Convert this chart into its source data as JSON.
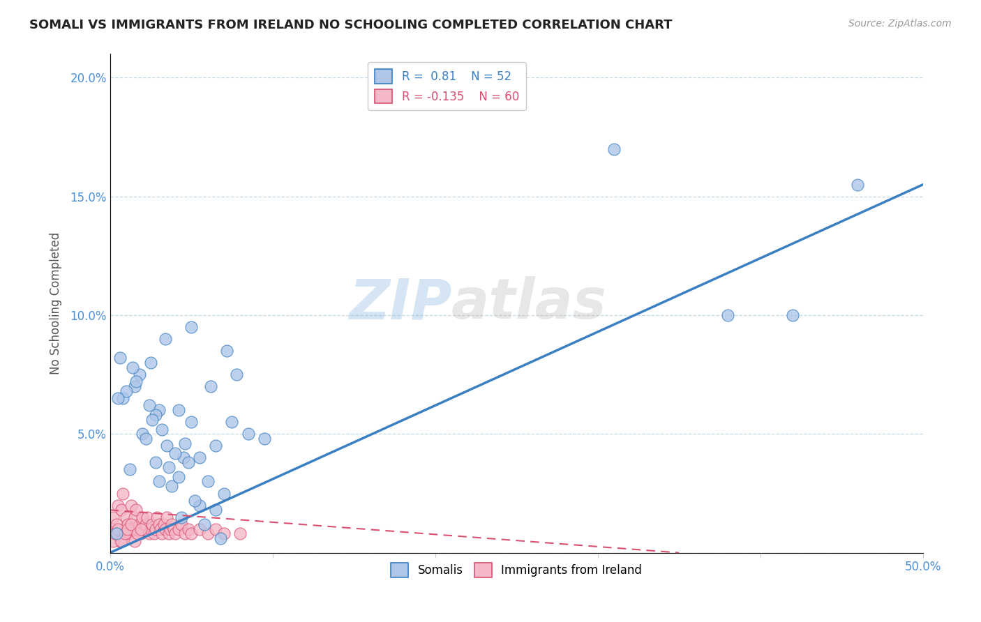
{
  "title": "SOMALI VS IMMIGRANTS FROM IRELAND NO SCHOOLING COMPLETED CORRELATION CHART",
  "source": "Source: ZipAtlas.com",
  "ylabel": "No Schooling Completed",
  "xlim": [
    0.0,
    0.5
  ],
  "ylim": [
    0.0,
    0.21
  ],
  "xticks": [
    0.0,
    0.1,
    0.2,
    0.3,
    0.4,
    0.5
  ],
  "yticks": [
    0.0,
    0.05,
    0.1,
    0.15,
    0.2
  ],
  "xticklabels": [
    "0.0%",
    "",
    "",
    "",
    "",
    "50.0%"
  ],
  "yticklabels": [
    "",
    "5.0%",
    "10.0%",
    "15.0%",
    "20.0%"
  ],
  "blue_R": 0.81,
  "blue_N": 52,
  "pink_R": -0.135,
  "pink_N": 60,
  "blue_color": "#aec6e8",
  "pink_color": "#f5b8c8",
  "blue_line_color": "#3a7fc1",
  "pink_line_color": "#d94f70",
  "watermark_zip": "ZIP",
  "watermark_atlas": "atlas",
  "legend_items": [
    "Somalis",
    "Immigrants from Ireland"
  ],
  "blue_line_x0": 0.0,
  "blue_line_y0": 0.0,
  "blue_line_x1": 0.5,
  "blue_line_y1": 0.155,
  "pink_line_x0": 0.0,
  "pink_line_y0": 0.018,
  "pink_line_x1": 0.35,
  "pink_line_y1": 0.0,
  "blue_scatter_x": [
    0.05,
    0.025,
    0.015,
    0.06,
    0.008,
    0.035,
    0.012,
    0.07,
    0.02,
    0.045,
    0.03,
    0.055,
    0.018,
    0.038,
    0.022,
    0.048,
    0.028,
    0.042,
    0.032,
    0.052,
    0.01,
    0.065,
    0.016,
    0.04,
    0.024,
    0.058,
    0.014,
    0.036,
    0.026,
    0.046,
    0.006,
    0.068,
    0.044,
    0.034,
    0.004,
    0.062,
    0.072,
    0.05,
    0.03,
    0.078,
    0.005,
    0.075,
    0.085,
    0.095,
    0.38,
    0.46,
    0.055,
    0.028,
    0.042,
    0.065,
    0.31,
    0.42
  ],
  "blue_scatter_y": [
    0.055,
    0.08,
    0.07,
    0.03,
    0.065,
    0.045,
    0.035,
    0.025,
    0.05,
    0.04,
    0.06,
    0.02,
    0.075,
    0.028,
    0.048,
    0.038,
    0.058,
    0.032,
    0.052,
    0.022,
    0.068,
    0.018,
    0.072,
    0.042,
    0.062,
    0.012,
    0.078,
    0.036,
    0.056,
    0.046,
    0.082,
    0.006,
    0.015,
    0.09,
    0.008,
    0.07,
    0.085,
    0.095,
    0.03,
    0.075,
    0.065,
    0.055,
    0.05,
    0.048,
    0.1,
    0.155,
    0.04,
    0.038,
    0.06,
    0.045,
    0.17,
    0.1
  ],
  "pink_scatter_x": [
    0.001,
    0.002,
    0.003,
    0.004,
    0.005,
    0.006,
    0.007,
    0.008,
    0.009,
    0.01,
    0.011,
    0.012,
    0.013,
    0.014,
    0.015,
    0.016,
    0.017,
    0.018,
    0.019,
    0.02,
    0.021,
    0.022,
    0.023,
    0.024,
    0.025,
    0.026,
    0.027,
    0.028,
    0.029,
    0.03,
    0.031,
    0.032,
    0.033,
    0.034,
    0.035,
    0.036,
    0.037,
    0.038,
    0.039,
    0.04,
    0.042,
    0.044,
    0.046,
    0.048,
    0.05,
    0.055,
    0.06,
    0.065,
    0.07,
    0.08,
    0.002,
    0.003,
    0.005,
    0.007,
    0.009,
    0.011,
    0.013,
    0.015,
    0.017,
    0.019
  ],
  "pink_scatter_y": [
    0.01,
    0.015,
    0.008,
    0.012,
    0.02,
    0.005,
    0.018,
    0.025,
    0.01,
    0.015,
    0.012,
    0.008,
    0.02,
    0.01,
    0.015,
    0.018,
    0.01,
    0.012,
    0.008,
    0.015,
    0.01,
    0.012,
    0.015,
    0.008,
    0.01,
    0.012,
    0.008,
    0.01,
    0.015,
    0.012,
    0.01,
    0.008,
    0.012,
    0.01,
    0.015,
    0.008,
    0.01,
    0.012,
    0.01,
    0.008,
    0.01,
    0.012,
    0.008,
    0.01,
    0.008,
    0.01,
    0.008,
    0.01,
    0.008,
    0.008,
    0.005,
    0.008,
    0.01,
    0.005,
    0.008,
    0.01,
    0.012,
    0.005,
    0.008,
    0.01
  ]
}
